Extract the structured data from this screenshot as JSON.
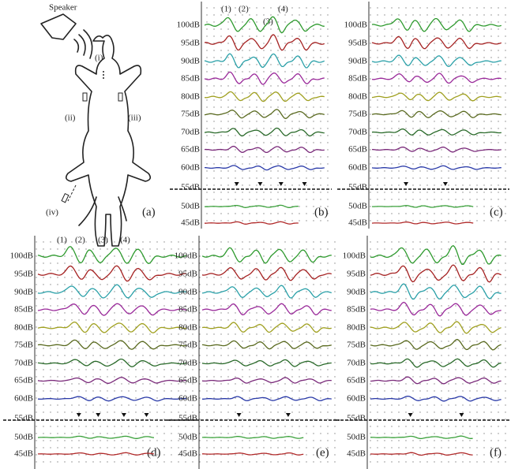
{
  "panel_a": {
    "speaker": "Speaker",
    "sites": [
      "(i)",
      "(ii)",
      "(iii)",
      "(iv)"
    ],
    "label": "(a)"
  },
  "waveform_panels": [
    {
      "label": "(b)",
      "levels": [
        "100dB",
        "95dB",
        "90dB",
        "85dB",
        "80dB",
        "75dB",
        "70dB",
        "65dB",
        "60dB",
        "55dB",
        "50dB",
        "45dB"
      ],
      "peaks": [
        "(1)",
        "(2)",
        "(3)",
        "(4)"
      ]
    },
    {
      "label": "(c)",
      "levels": [
        "100dB",
        "95dB",
        "90dB",
        "85dB",
        "80dB",
        "75dB",
        "70dB",
        "65dB",
        "60dB",
        "55dB",
        "50dB",
        "45dB"
      ]
    },
    {
      "label": "(d)",
      "levels": [
        "100dB",
        "95dB",
        "90dB",
        "85dB",
        "80dB",
        "75dB",
        "70dB",
        "65dB",
        "60dB",
        "55dB",
        "50dB",
        "45dB"
      ],
      "peaks": [
        "(1)",
        "(2)",
        "(3)",
        "(4)"
      ]
    },
    {
      "label": "(e)",
      "levels": [
        "100dB",
        "95dB",
        "90dB",
        "85dB",
        "80dB",
        "75dB",
        "70dB",
        "65dB",
        "60dB",
        "55dB",
        "50dB",
        "45dB"
      ]
    },
    {
      "label": "(f)",
      "levels": [
        "100dB",
        "95dB",
        "90dB",
        "85dB",
        "80dB",
        "75dB",
        "70dB",
        "65dB",
        "60dB",
        "55dB",
        "50dB",
        "45dB"
      ]
    }
  ]
}
